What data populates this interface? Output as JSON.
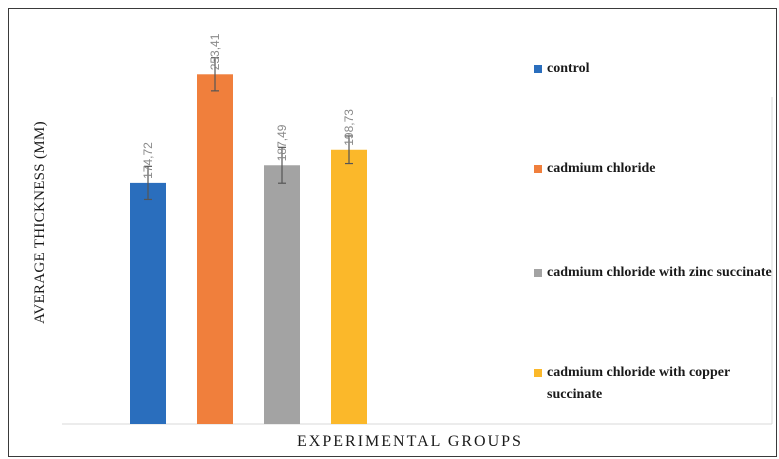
{
  "chart_data": {
    "type": "bar",
    "title": "",
    "xlabel": "EXPERIMENTAL GROUPS",
    "ylabel": "AVERAGE THICKNESS (MM)",
    "ylim": [
      0,
      300
    ],
    "grid": false,
    "legend_position": "right",
    "categories": [
      "control",
      "cadmium chloride",
      "cadmium chloride with zinc succinate",
      "cadmium chloride with copper succinate"
    ],
    "values": [
      174.72,
      253.41,
      187.49,
      198.73
    ],
    "value_labels": [
      "174,72",
      "253,41",
      "187,49",
      "198,73"
    ],
    "error": [
      12,
      12,
      13,
      10
    ],
    "colors": [
      "#2a6ebd",
      "#f07f3c",
      "#a3a3a3",
      "#fbb82a"
    ]
  }
}
